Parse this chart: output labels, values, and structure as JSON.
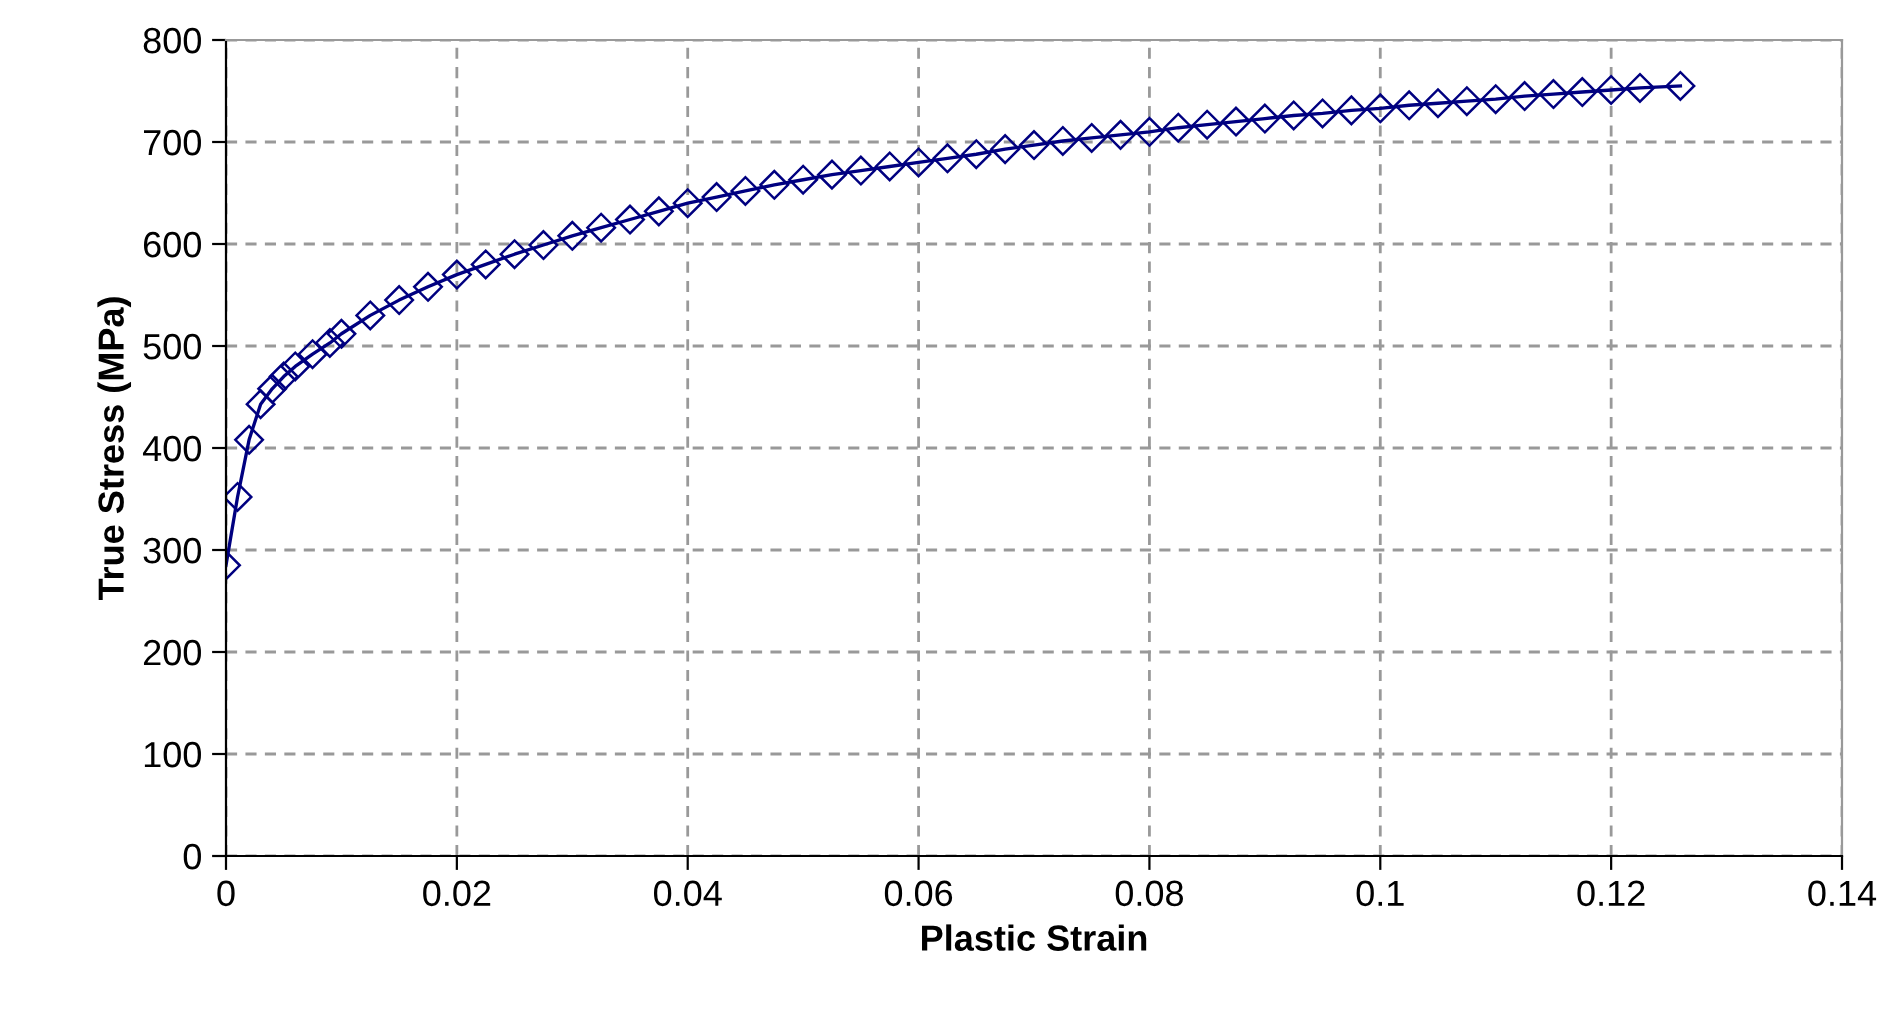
{
  "chart_data": {
    "type": "line",
    "xlabel": "Plastic Strain",
    "ylabel": "True Stress (MPa)",
    "series": [
      {
        "color": "#000080",
        "x": [
          0,
          0.001,
          0.002,
          0.003,
          0.004,
          0.005,
          0.006,
          0.0075,
          0.009,
          0.01,
          0.0125,
          0.015,
          0.0175,
          0.02,
          0.0225,
          0.025,
          0.0275,
          0.03,
          0.0325,
          0.035,
          0.0375,
          0.04,
          0.0425,
          0.045,
          0.0475,
          0.05,
          0.0525,
          0.055,
          0.0575,
          0.06,
          0.0625,
          0.065,
          0.0675,
          0.07,
          0.0725,
          0.075,
          0.0775,
          0.08,
          0.0825,
          0.085,
          0.0875,
          0.09,
          0.0925,
          0.095,
          0.0975,
          0.1,
          0.1025,
          0.105,
          0.1075,
          0.11,
          0.1125,
          0.115,
          0.1175,
          0.12,
          0.1225,
          0.126
        ],
        "values": [
          285,
          352,
          408,
          443,
          458,
          470,
          480,
          492,
          503,
          512,
          530,
          545,
          558,
          570,
          580,
          590,
          599,
          608,
          616,
          624,
          632,
          640,
          646,
          652,
          658,
          663,
          668,
          672,
          676,
          680,
          684,
          688,
          693,
          697,
          701,
          704,
          707,
          710,
          714,
          717,
          720,
          723,
          726,
          728,
          731,
          733,
          736,
          738,
          740,
          742,
          745,
          747,
          749,
          751,
          753,
          755
        ]
      }
    ],
    "xlim": [
      0,
      0.14
    ],
    "xticks": [
      0,
      0.02,
      0.04,
      0.06,
      0.08,
      0.1,
      0.12,
      0.14
    ],
    "ylim": [
      0,
      800
    ],
    "yticks": [
      0,
      100,
      200,
      300,
      400,
      500,
      600,
      700,
      800
    ],
    "grid": true,
    "marker": "diamond",
    "line_style": "solid"
  }
}
